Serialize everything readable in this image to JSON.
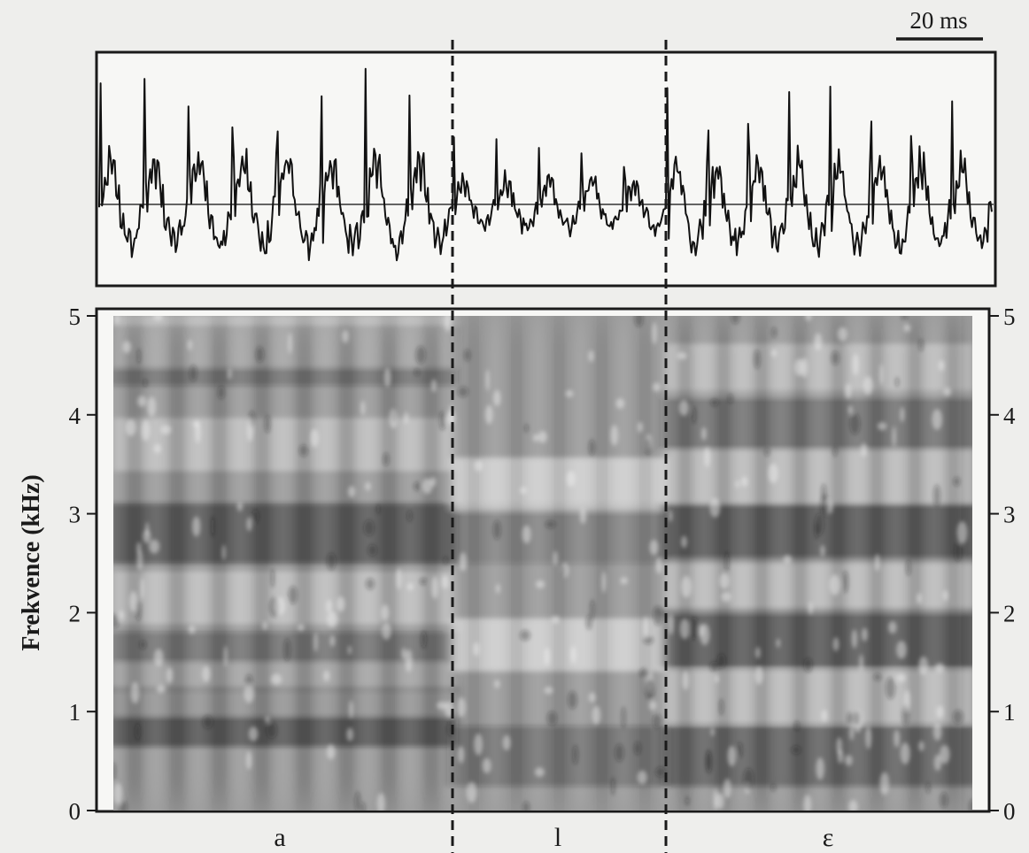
{
  "chart_data": [
    {
      "type": "line",
      "panel": "waveform",
      "scale_bar_label": "20 ms",
      "grid": false,
      "legend": "none",
      "segments": [
        {
          "label": "a",
          "period_count": 8
        },
        {
          "label": "l",
          "period_count": 5
        },
        {
          "label": "ε",
          "period_count": 8
        }
      ]
    },
    {
      "type": "heatmap",
      "panel": "spectrogram",
      "ylabel": "Frekvence (kHz)",
      "ylim": [
        0,
        5
      ],
      "yticks": [
        "0",
        "1",
        "2",
        "3",
        "4",
        "5"
      ],
      "grid": false,
      "legend": "none",
      "colors": {
        "low": "#f4f4f4",
        "high": "#1c1c1c",
        "frame": "#1a1a1a"
      },
      "segments": [
        {
          "label": "a",
          "formants_khz": [
            0.95,
            1.5,
            2.8,
            4.6
          ],
          "formant_strength": [
            0.9,
            0.55,
            0.95,
            0.55
          ]
        },
        {
          "label": "l",
          "formants_khz": [
            0.55,
            2.8
          ],
          "formant_strength": [
            0.55,
            0.35
          ]
        },
        {
          "label": "ε",
          "formants_khz": [
            0.55,
            1.75,
            2.8,
            3.95
          ],
          "formant_strength": [
            0.75,
            0.85,
            0.95,
            0.55
          ]
        }
      ]
    }
  ]
}
